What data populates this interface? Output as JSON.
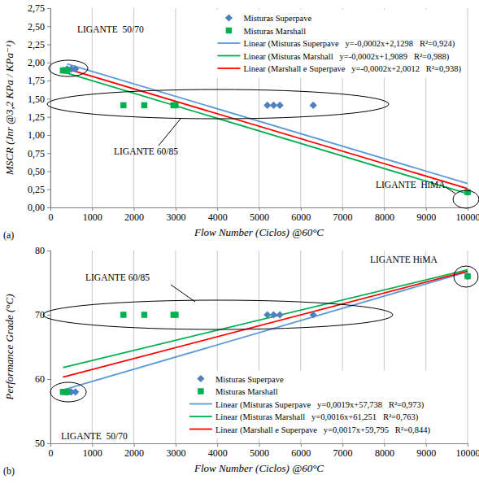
{
  "chart_data": [
    {
      "type": "scatter",
      "title": "(a)",
      "x_label": "Flow Number (Ciclos) @60°C",
      "y_label": "MSCR (Jnr @3,2 KPa / KPa⁻¹)",
      "xlim": [
        0,
        10000
      ],
      "xticks": [
        0,
        1000,
        2000,
        3000,
        4000,
        5000,
        6000,
        7000,
        8000,
        9000,
        10000
      ],
      "ylim": [
        0,
        2.75
      ],
      "yticks": [
        {
          "value": 0,
          "label": "0,00"
        },
        {
          "value": 0.25,
          "label": "0,25"
        },
        {
          "value": 0.5,
          "label": "0,50"
        },
        {
          "value": 0.75,
          "label": "0,75"
        },
        {
          "value": 1,
          "label": "1,00"
        },
        {
          "value": 1.25,
          "label": "1,25"
        },
        {
          "value": 1.5,
          "label": "1,50"
        },
        {
          "value": 1.75,
          "label": "1,75"
        },
        {
          "value": 2,
          "label": "2,00"
        },
        {
          "value": 2.25,
          "label": "2,25"
        },
        {
          "value": 2.5,
          "label": "2,50"
        },
        {
          "value": 2.75,
          "label": "2,75"
        }
      ],
      "grid": true,
      "legend": "top-right",
      "annotations": [
        "LIGANTE  50/70",
        "LIGANTE 60/85",
        "LIGANTE  HiMA"
      ],
      "series": [
        {
          "name": "Misturas Superpave",
          "type": "scatter",
          "marker": "diamond",
          "color": "#4F81BD",
          "x": [
            400,
            500,
            600,
            5200,
            5350,
            5500,
            6300,
            10000
          ],
          "values": [
            1.91,
            1.91,
            1.91,
            1.41,
            1.41,
            1.41,
            1.41,
            0.21
          ]
        },
        {
          "name": "Misturas Marshall",
          "type": "scatter",
          "marker": "square",
          "color": "#00B050",
          "x": [
            300,
            350,
            400,
            1750,
            2250,
            2950,
            3000,
            10000
          ],
          "values": [
            1.89,
            1.89,
            1.89,
            1.41,
            1.41,
            1.41,
            1.41,
            0.21
          ]
        },
        {
          "name": "Linear (Misturas Superpave   y=-0,0002x+2,1298   R²=0,924)",
          "type": "line",
          "line_style": "solid",
          "color": "#5B9BD5",
          "x": [
            400,
            10000
          ],
          "values": [
            1.98,
            0.33
          ]
        },
        {
          "name": "Linear (Misturas Marshall   y=-0,0002x+1,9089   R²=0,988)",
          "type": "line",
          "line_style": "solid",
          "color": "#00B050",
          "x": [
            300,
            10000
          ],
          "values": [
            1.87,
            0.19
          ]
        },
        {
          "name": "Linear (Marshall e Superpave   y=-0,0002x+2,0012   R²=0,938)",
          "type": "line",
          "line_style": "solid",
          "color": "#FF0000",
          "x": [
            300,
            10000
          ],
          "values": [
            1.93,
            0.26
          ]
        }
      ]
    },
    {
      "type": "scatter",
      "title": "(b)",
      "x_label": "Flow Number (Ciclos) @60°C",
      "y_label": "Performance Grade (°C)",
      "xlim": [
        0,
        10000
      ],
      "xticks": [
        0,
        1000,
        2000,
        3000,
        4000,
        5000,
        6000,
        7000,
        8000,
        9000,
        10000
      ],
      "ylim": [
        50,
        80
      ],
      "yticks": [
        50,
        60,
        70,
        80
      ],
      "grid": true,
      "legend": "bottom-right",
      "annotations": [
        "LIGANTE HiMA",
        "LIGANTE 60/85",
        "LIGANTE  50/70"
      ],
      "series": [
        {
          "name": "Misturas Superpave",
          "type": "scatter",
          "marker": "diamond",
          "color": "#4F81BD",
          "x": [
            400,
            500,
            600,
            5200,
            5350,
            5500,
            6300,
            10000
          ],
          "values": [
            58,
            58,
            58,
            70,
            70,
            70,
            70,
            76
          ]
        },
        {
          "name": "Misturas Marshall",
          "type": "scatter",
          "marker": "square",
          "color": "#00B050",
          "x": [
            300,
            350,
            400,
            1750,
            2250,
            2950,
            3000,
            10000
          ],
          "values": [
            58,
            58,
            58,
            70,
            70,
            70,
            70,
            76
          ]
        },
        {
          "name": "Linear (Misturas Superpave   y=0,0019x+57,738   R²=0,973)",
          "type": "line",
          "line_style": "solid",
          "color": "#5B9BD5",
          "x": [
            300,
            10000
          ],
          "values": [
            58.3,
            76.7
          ]
        },
        {
          "name": "Linear (Misturas Marshall   y=0,0016x+61,251   R²=0,763)",
          "type": "line",
          "line_style": "solid",
          "color": "#00B050",
          "x": [
            300,
            10000
          ],
          "values": [
            61.8,
            77.0
          ]
        },
        {
          "name": "Linear (Marshall e Superpave   y=0,0017x+59,795   R²=0,844)",
          "type": "line",
          "line_style": "solid",
          "color": "#FF0000",
          "x": [
            300,
            10000
          ],
          "values": [
            60.3,
            76.8
          ]
        }
      ]
    }
  ]
}
